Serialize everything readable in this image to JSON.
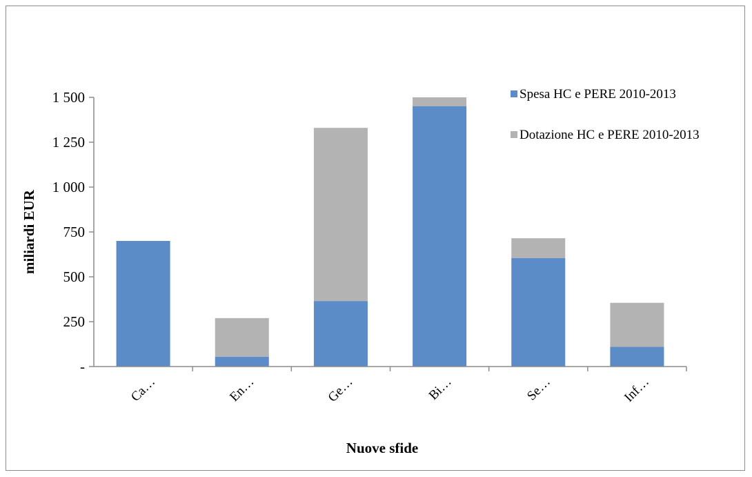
{
  "chart_data": {
    "type": "bar",
    "stacked": true,
    "title": "",
    "xlabel": "Nuove sfide",
    "ylabel": "miliardi EUR",
    "categories": [
      "Ca…",
      "En…",
      "Ge…",
      "Bi…",
      "Se…",
      "Inf…"
    ],
    "series": [
      {
        "name": "Spesa HC e PERE 2010-2013",
        "color": "#5b8cc8",
        "values": [
          700,
          55,
          365,
          1450,
          605,
          110
        ]
      },
      {
        "name": "Dotazione HC e PERE 2010-2013",
        "color": "#b3b3b3",
        "values": [
          0,
          215,
          965,
          50,
          110,
          245
        ]
      }
    ],
    "ylim": [
      0,
      1500
    ],
    "yticks": [
      {
        "value": 0,
        "label": "-"
      },
      {
        "value": 250,
        "label": "250"
      },
      {
        "value": 500,
        "label": "500"
      },
      {
        "value": 750,
        "label": "750"
      },
      {
        "value": 1000,
        "label": "1 000"
      },
      {
        "value": 1250,
        "label": "1 250"
      },
      {
        "value": 1500,
        "label": "1 500"
      }
    ],
    "grid": false,
    "legend": "top-right"
  }
}
